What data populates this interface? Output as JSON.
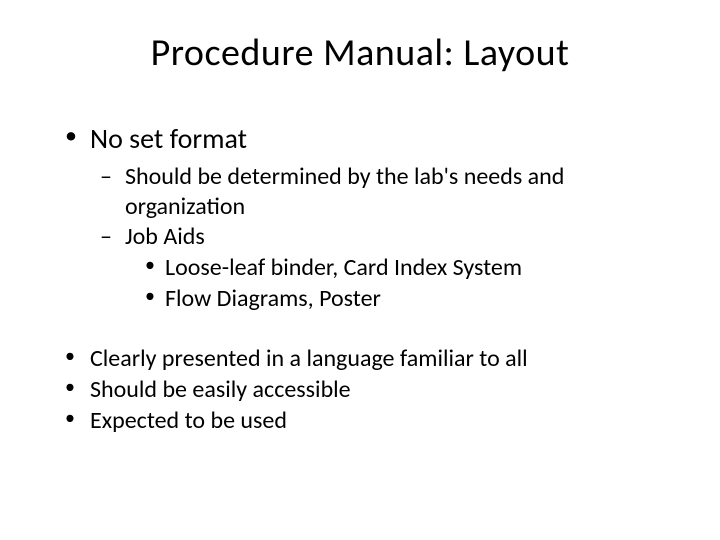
{
  "title": "Procedure Manual:  Layout",
  "bullets": {
    "main1": "No set format",
    "sub1": "Should be determined by the lab's needs and organization",
    "sub2": "Job Aids",
    "subsub1": "Loose-leaf binder, Card Index System",
    "subsub2": "Flow Diagrams, Poster",
    "main2": "Clearly presented in a language familiar to all",
    "main3": "Should be easily accessible",
    "main4": "Expected to be used"
  },
  "colors": {
    "background": "#ffffff",
    "text": "#000000"
  },
  "fonts": {
    "title_size": 38,
    "level1_size": 28,
    "level2_size": 24,
    "level3_size": 24,
    "bottom_size": 24
  }
}
